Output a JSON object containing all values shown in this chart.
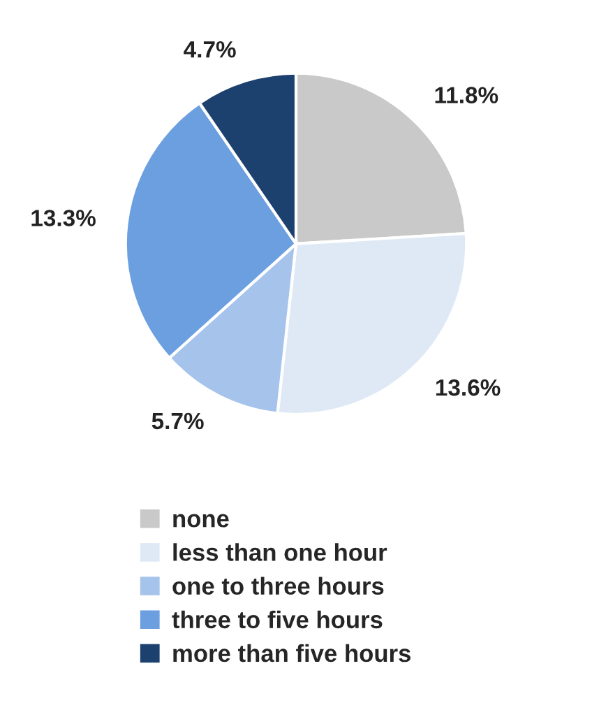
{
  "chart_data": {
    "type": "pie",
    "categories": [
      "none",
      "less than one hour",
      "one to three hours",
      "three to five hours",
      "more than five hours"
    ],
    "values": [
      11.8,
      13.6,
      5.7,
      13.3,
      4.7
    ],
    "value_labels": [
      "11.8%",
      "13.6%",
      "5.7%",
      "13.3%",
      "4.7%"
    ],
    "colors": [
      "#c9c9c9",
      "#dfe9f6",
      "#a5c3eb",
      "#6b9fe0",
      "#1d416f"
    ],
    "legend": "bottom"
  }
}
